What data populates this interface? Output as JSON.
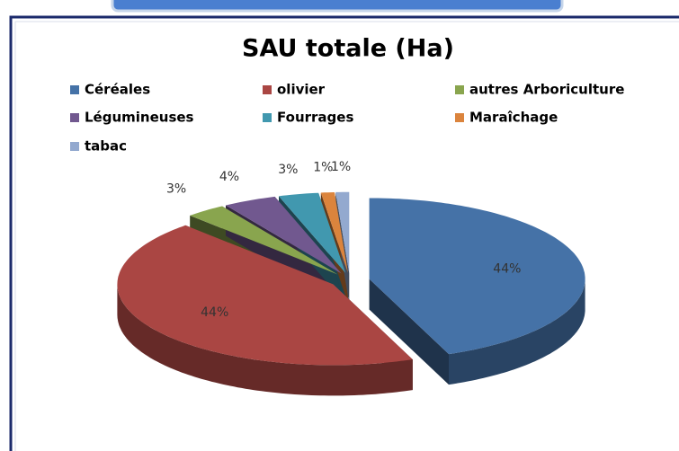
{
  "chart_data": {
    "type": "pie3d",
    "title": "SAU  totale (Ha)",
    "categories": [
      "Céréales",
      "olivier",
      "autres Arboriculture",
      "Légumineuses",
      "Fourrages",
      "Maraîchage",
      "tabac"
    ],
    "values": [
      44,
      44,
      3,
      4,
      3,
      1,
      1
    ],
    "value_labels": [
      "44%",
      "44%",
      "3%",
      "4%",
      "3%",
      "1%",
      "1%"
    ],
    "colors": [
      "#4572a7",
      "#aa4643",
      "#89a54e",
      "#71588f",
      "#4198af",
      "#db843d",
      "#93a9cf"
    ],
    "legend": "top"
  }
}
